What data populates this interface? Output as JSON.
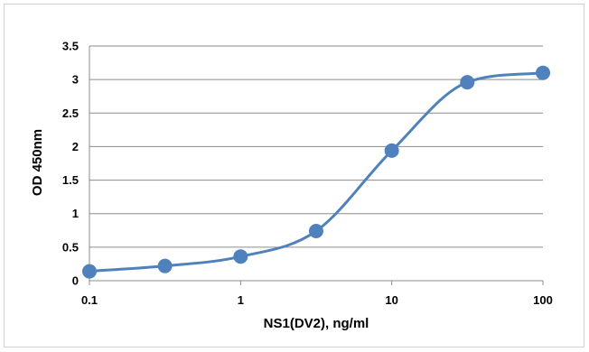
{
  "chart_data": {
    "type": "scatter",
    "title": "",
    "xlabel": "NS1(DV2), ng/ml",
    "ylabel": "OD 450nm",
    "x_scale": "log",
    "xlim": [
      0.1,
      100
    ],
    "ylim": [
      0,
      3.5
    ],
    "x_ticks": [
      "0.1",
      "1",
      "10",
      "100"
    ],
    "y_ticks": [
      "0",
      "0.5",
      "1",
      "1.5",
      "2",
      "2.5",
      "3",
      "3.5"
    ],
    "grid": "horizontal",
    "legend": "none",
    "smooth_line": true,
    "colors": {
      "series": "#4f81bd",
      "marker": "#4f81bd",
      "grid": "#8c8c8c"
    },
    "series": [
      {
        "x": [
          0.1,
          0.316,
          1,
          3.16,
          10,
          31.6,
          100
        ],
        "y": [
          0.14,
          0.22,
          0.36,
          0.74,
          1.94,
          2.96,
          3.1
        ]
      }
    ]
  }
}
